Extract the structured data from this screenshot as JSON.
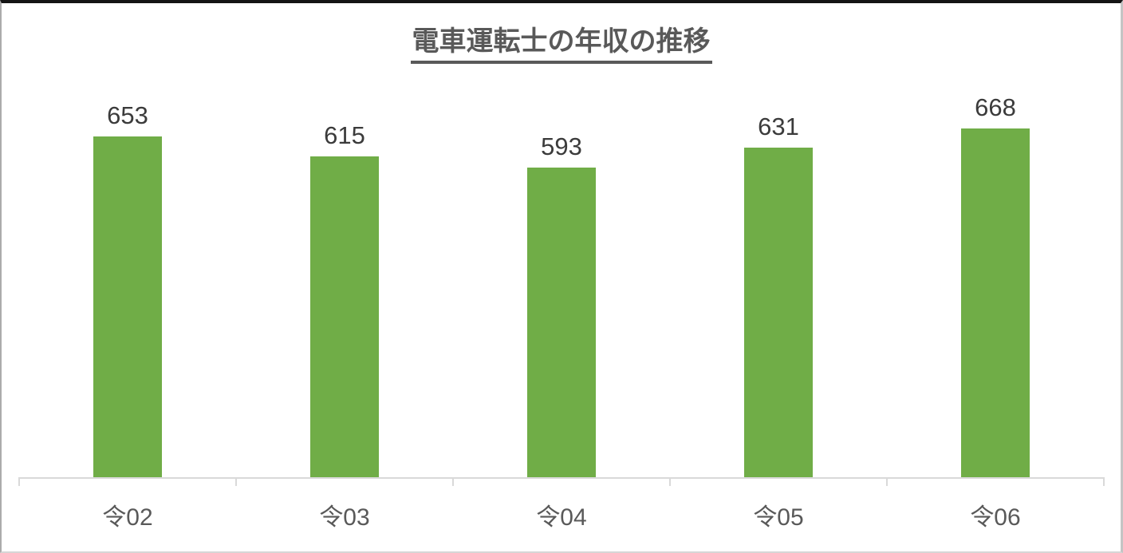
{
  "chart_data": {
    "type": "bar",
    "title": "電車運転士の年収の推移",
    "categories": [
      "令02",
      "令03",
      "令04",
      "令05",
      "令06"
    ],
    "values": [
      653,
      615,
      593,
      631,
      668
    ],
    "xlabel": "",
    "ylabel": "",
    "ylim": [
      0,
      800
    ],
    "grid": false,
    "legend": "none",
    "data_labels": true,
    "bar_color": "#70AD47",
    "label_color": "#3b3b3b",
    "category_label_color": "#595959",
    "title_color": "#595959",
    "axis_color": "#d9d9d9"
  }
}
